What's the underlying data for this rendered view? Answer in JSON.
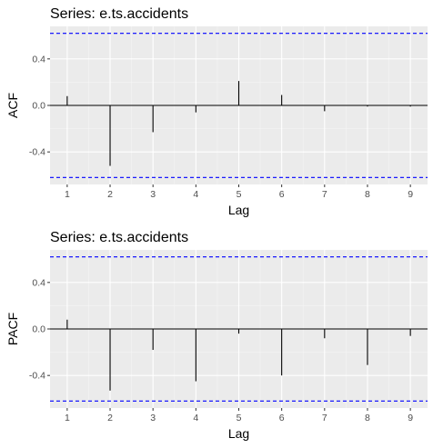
{
  "colors": {
    "panel_background": "#ebebeb",
    "grid_major": "#ffffff",
    "grid_minor": "#f5f5f5",
    "bar": "#000000",
    "zero_line": "#000000",
    "confidence_band": "#0000ff",
    "tick_text": "#4d4d4d"
  },
  "chart_data": [
    {
      "type": "bar",
      "title": "Series: e.ts.accidents",
      "xlabel": "Lag",
      "ylabel": "ACF",
      "x": [
        1,
        2,
        3,
        4,
        5,
        6,
        7,
        8,
        9
      ],
      "values": [
        0.08,
        -0.52,
        -0.23,
        -0.06,
        0.21,
        0.09,
        -0.05,
        -0.01,
        -0.01
      ],
      "confidence_limit": 0.62,
      "ylim": [
        -0.68,
        0.68
      ],
      "yticks": [
        0.4,
        0.0,
        -0.4
      ],
      "ytick_labels": [
        "0.4",
        "0.0",
        "-0.4"
      ],
      "xticks": [
        1,
        2,
        3,
        4,
        5,
        6,
        7,
        8,
        9
      ],
      "xtick_labels": [
        "1",
        "2",
        "3",
        "4",
        "5",
        "6",
        "7",
        "8",
        "9"
      ],
      "grid": true,
      "legend": "none"
    },
    {
      "type": "bar",
      "title": "Series: e.ts.accidents",
      "xlabel": "Lag",
      "ylabel": "PACF",
      "x": [
        1,
        2,
        3,
        4,
        5,
        6,
        7,
        8,
        9
      ],
      "values": [
        0.08,
        -0.53,
        -0.18,
        -0.45,
        -0.04,
        -0.4,
        -0.08,
        -0.31,
        -0.06
      ],
      "confidence_limit": 0.62,
      "ylim": [
        -0.68,
        0.68
      ],
      "yticks": [
        0.4,
        0.0,
        -0.4
      ],
      "ytick_labels": [
        "0.4",
        "0.0",
        "-0.4"
      ],
      "xticks": [
        1,
        2,
        3,
        4,
        5,
        6,
        7,
        8,
        9
      ],
      "xtick_labels": [
        "1",
        "2",
        "3",
        "4",
        "5",
        "6",
        "7",
        "8",
        "9"
      ],
      "grid": true,
      "legend": "none"
    }
  ]
}
